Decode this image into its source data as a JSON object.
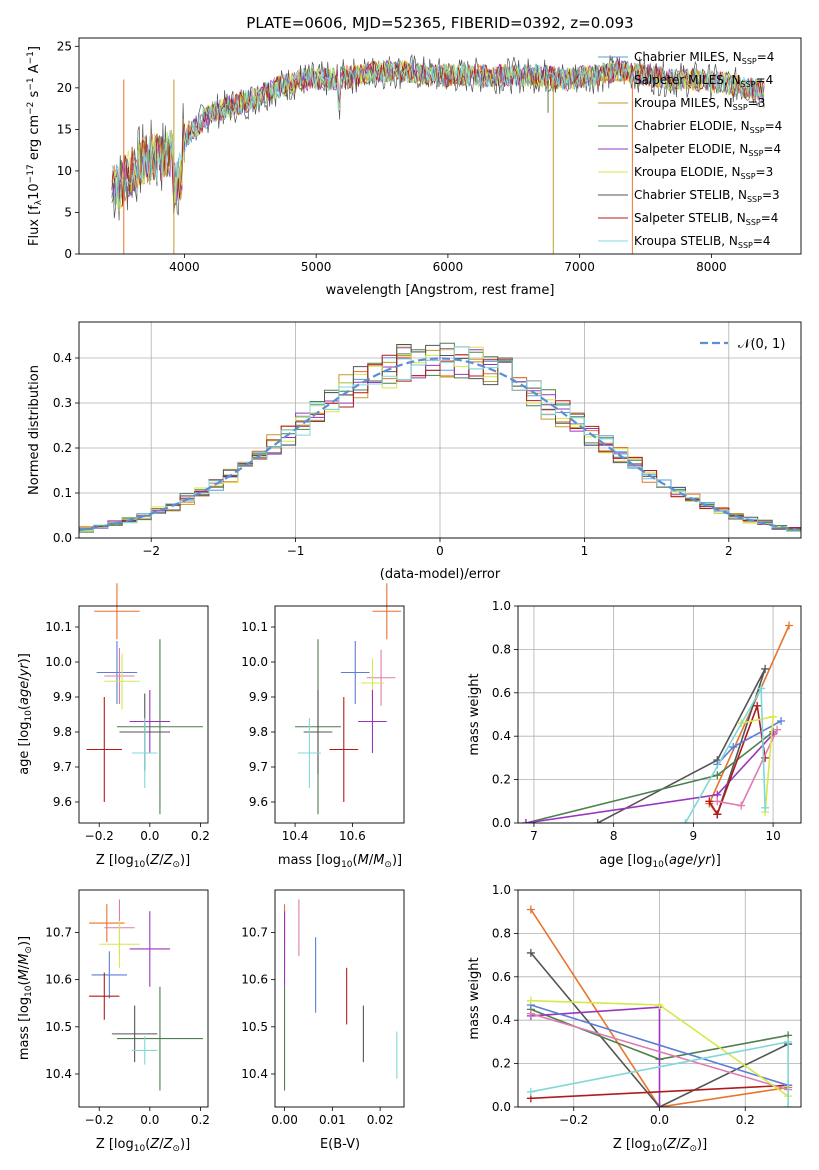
{
  "figure": {
    "title": "PLATE=0606, MJD=52365, FIBERID=0392, z=0.093"
  },
  "colors": {
    "chabrier_miles": "#5b9bd5",
    "salpeter_miles": "#e8732a",
    "kroupa_miles": "#c49a2c",
    "chabrier_elodie": "#4f7f4f",
    "salpeter_elodie": "#9a35c0",
    "kroupa_elodie": "#d6e84a",
    "chabrier_stelib": "#555555",
    "salpeter_stelib": "#b01c1c",
    "kroupa_stelib": "#7fd8d8",
    "gaussian": "#5b8fd5",
    "pink": "#e07bb0",
    "blue": "#5b7fd8"
  },
  "chart_data": [
    {
      "id": "spectrum",
      "type": "line",
      "title": "PLATE=0606, MJD=52365, FIBERID=0392, z=0.093",
      "xlabel": "wavelength [Angstrom, rest frame]",
      "ylabel": "Flux [f_λ 10^-17 erg cm^-2 s^-1 A^-1]",
      "xlim": [
        3200,
        8680
      ],
      "ylim": [
        0,
        26
      ],
      "xticks": [
        4000,
        5000,
        6000,
        7000,
        8000
      ],
      "yticks": [
        0,
        5,
        10,
        15,
        20,
        25
      ],
      "legend": "right",
      "x": [
        3500,
        3600,
        3700,
        3800,
        3900,
        4000,
        4100,
        4200,
        4300,
        4500,
        4700,
        4900,
        5100,
        5300,
        5500,
        5700,
        5900,
        6100,
        6300,
        6500,
        6700,
        6900,
        7100,
        7300,
        7500,
        7700,
        7900,
        8100,
        8300,
        8400
      ],
      "y": [
        8,
        10,
        11.5,
        11.5,
        12,
        14,
        15.5,
        17,
        17.5,
        18.5,
        20,
        21,
        21,
        21.5,
        22,
        22,
        21.5,
        21.5,
        21.5,
        21.5,
        21.5,
        21,
        21.5,
        22,
        21.5,
        21,
        21,
        20.5,
        20,
        19.5
      ],
      "series": [
        {
          "name": "Chabrier MILES, N_SSP=4",
          "label_main": "Chabrier MILES, N",
          "label_sub": "SSP",
          "label_tail": "=4",
          "color_key": "chabrier_miles"
        },
        {
          "name": "Salpeter MILES, N_SSP=4",
          "label_main": "Salpeter MILES, N",
          "label_sub": "SSP",
          "label_tail": "=4",
          "color_key": "salpeter_miles"
        },
        {
          "name": "Kroupa MILES, N_SSP=3",
          "label_main": "Kroupa MILES, N",
          "label_sub": "SSP",
          "label_tail": "=3",
          "color_key": "kroupa_miles"
        },
        {
          "name": "Chabrier ELODIE, N_SSP=4",
          "label_main": "Chabrier ELODIE, N",
          "label_sub": "SSP",
          "label_tail": "=4",
          "color_key": "chabrier_elodie"
        },
        {
          "name": "Salpeter ELODIE, N_SSP=4",
          "label_main": "Salpeter ELODIE, N",
          "label_sub": "SSP",
          "label_tail": "=4",
          "color_key": "salpeter_elodie"
        },
        {
          "name": "Kroupa ELODIE, N_SSP=3",
          "label_main": "Kroupa ELODIE, N",
          "label_sub": "SSP",
          "label_tail": "=3",
          "color_key": "kroupa_elodie"
        },
        {
          "name": "Chabrier STELIB, N_SSP=3",
          "label_main": "Chabrier STELIB, N",
          "label_sub": "SSP",
          "label_tail": "=3",
          "color_key": "chabrier_stelib"
        },
        {
          "name": "Salpeter STELIB, N_SSP=4",
          "label_main": "Salpeter STELIB, N",
          "label_sub": "SSP",
          "label_tail": "=4",
          "color_key": "salpeter_stelib"
        },
        {
          "name": "Kroupa STELIB, N_SSP=4",
          "label_main": "Kroupa STELIB, N",
          "label_sub": "SSP",
          "label_tail": "=4",
          "color_key": "kroupa_stelib"
        }
      ]
    },
    {
      "id": "residuals",
      "type": "line",
      "xlabel": "(data-model)/error",
      "ylabel": "Normed distribution",
      "xlim": [
        -2.5,
        2.5
      ],
      "ylim": [
        0,
        0.48
      ],
      "xticks": [
        -2,
        -1,
        0,
        1,
        2
      ],
      "yticks": [
        0.0,
        0.1,
        0.2,
        0.3,
        0.4
      ],
      "grid": true,
      "legend": "top-right",
      "legend_label": "𝒩(0, 1)",
      "bin_width": 0.1
    },
    {
      "id": "age_vs_Z",
      "type": "scatter",
      "xlabel": "Z [log10(Z/Z⊙)]",
      "ylabel": "age [log10(age/yr)]",
      "xlim": [
        -0.28,
        0.23
      ],
      "ylim": [
        9.54,
        10.16
      ],
      "xticks": [
        -0.2,
        0.0,
        0.2
      ],
      "yticks": [
        9.6,
        9.7,
        9.8,
        9.9,
        10.0,
        10.1
      ],
      "points": [
        {
          "x": -0.13,
          "y": 10.145,
          "xerr": 0.09,
          "yerr": 0.08,
          "color_key": "salpeter_miles"
        },
        {
          "x": -0.13,
          "y": 9.97,
          "xerr": 0.08,
          "yerr": 0.09,
          "color_key": "blue"
        },
        {
          "x": -0.12,
          "y": 9.96,
          "xerr": 0.06,
          "yerr": 0.08,
          "color_key": "pink"
        },
        {
          "x": -0.11,
          "y": 9.945,
          "xerr": 0.07,
          "yerr": 0.08,
          "color_key": "kroupa_elodie"
        },
        {
          "x": -0.18,
          "y": 9.75,
          "xerr": 0.07,
          "yerr": 0.15,
          "color_key": "salpeter_stelib"
        },
        {
          "x": 0.04,
          "y": 9.815,
          "xerr": 0.17,
          "yerr": 0.25,
          "color_key": "chabrier_elodie"
        },
        {
          "x": 0.0,
          "y": 9.83,
          "xerr": 0.08,
          "yerr": 0.09,
          "color_key": "salpeter_elodie"
        },
        {
          "x": -0.02,
          "y": 9.8,
          "xerr": 0.1,
          "yerr": 0.11,
          "color_key": "chabrier_stelib"
        },
        {
          "x": -0.02,
          "y": 9.74,
          "xerr": 0.05,
          "yerr": 0.1,
          "color_key": "kroupa_stelib"
        }
      ]
    },
    {
      "id": "age_vs_mass",
      "type": "scatter",
      "xlabel": "mass [log10(M/M⊙)]",
      "xlim": [
        10.33,
        10.78
      ],
      "ylim": [
        9.54,
        10.16
      ],
      "xticks": [
        10.4,
        10.6
      ],
      "yticks": [
        9.6,
        9.7,
        9.8,
        9.9,
        10.0,
        10.1
      ],
      "points": [
        {
          "x": 10.72,
          "y": 10.145,
          "xerr": 0.05,
          "yerr": 0.08,
          "color_key": "salpeter_miles"
        },
        {
          "x": 10.61,
          "y": 9.97,
          "xerr": 0.05,
          "yerr": 0.09,
          "color_key": "blue"
        },
        {
          "x": 10.7,
          "y": 9.955,
          "xerr": 0.05,
          "yerr": 0.08,
          "color_key": "pink"
        },
        {
          "x": 10.67,
          "y": 9.94,
          "xerr": 0.04,
          "yerr": 0.07,
          "color_key": "kroupa_elodie"
        },
        {
          "x": 10.57,
          "y": 9.75,
          "xerr": 0.05,
          "yerr": 0.15,
          "color_key": "salpeter_stelib"
        },
        {
          "x": 10.48,
          "y": 9.815,
          "xerr": 0.08,
          "yerr": 0.25,
          "color_key": "chabrier_elodie"
        },
        {
          "x": 10.67,
          "y": 9.83,
          "xerr": 0.05,
          "yerr": 0.09,
          "color_key": "salpeter_elodie"
        },
        {
          "x": 10.48,
          "y": 9.8,
          "xerr": 0.05,
          "yerr": 0.12,
          "color_key": "chabrier_stelib"
        },
        {
          "x": 10.45,
          "y": 9.74,
          "xerr": 0.04,
          "yerr": 0.1,
          "color_key": "kroupa_stelib"
        }
      ]
    },
    {
      "id": "weight_vs_age",
      "type": "line",
      "xlabel": "age [log10(age/yr)]",
      "ylabel": "mass weight",
      "xlim": [
        6.8,
        10.35
      ],
      "ylim": [
        0,
        1.0
      ],
      "xticks": [
        7,
        8,
        9,
        10
      ],
      "yticks": [
        0.0,
        0.2,
        0.4,
        0.6,
        0.8,
        1.0
      ],
      "grid": true,
      "series": [
        {
          "color_key": "salpeter_miles",
          "x": [
            9.3,
            9.2,
            10.2
          ],
          "y": [
            0.04,
            0.09,
            0.91
          ]
        },
        {
          "color_key": "chabrier_stelib",
          "x": [
            7.8,
            9.3,
            9.9,
            9.3
          ],
          "y": [
            0.0,
            0.29,
            0.71,
            0.04
          ]
        },
        {
          "color_key": "chabrier_elodie",
          "x": [
            6.9,
            9.3,
            10.0
          ],
          "y": [
            0.0,
            0.22,
            0.42
          ]
        },
        {
          "color_key": "salpeter_elodie",
          "x": [
            6.9,
            9.3,
            10.0
          ],
          "y": [
            0.0,
            0.13,
            0.41
          ]
        },
        {
          "color_key": "salpeter_stelib",
          "x": [
            9.2,
            9.3,
            9.8,
            9.9
          ],
          "y": [
            0.1,
            0.04,
            0.54,
            0.3
          ]
        },
        {
          "color_key": "blue",
          "x": [
            9.3,
            9.5,
            10.1
          ],
          "y": [
            0.27,
            0.35,
            0.47
          ]
        },
        {
          "color_key": "pink",
          "x": [
            9.3,
            9.6,
            10.05
          ],
          "y": [
            0.1,
            0.08,
            0.43
          ]
        },
        {
          "color_key": "kroupa_elodie",
          "x": [
            9.6,
            10.0,
            9.9
          ],
          "y": [
            0.46,
            0.49,
            0.05
          ]
        },
        {
          "color_key": "kroupa_stelib",
          "x": [
            8.9,
            9.85,
            9.9
          ],
          "y": [
            0.0,
            0.62,
            0.07
          ]
        }
      ]
    },
    {
      "id": "mass_vs_Z",
      "type": "scatter",
      "xlabel": "Z [log10(Z/Z⊙)]",
      "ylabel": "mass [log10(M/M⊙)]",
      "xlim": [
        -0.28,
        0.23
      ],
      "ylim": [
        10.33,
        10.79
      ],
      "xticks": [
        -0.2,
        0.0,
        0.2
      ],
      "yticks": [
        10.4,
        10.5,
        10.6,
        10.7
      ],
      "points": [
        {
          "x": -0.17,
          "y": 10.72,
          "xerr": 0.07,
          "yerr": 0.04,
          "color_key": "salpeter_miles"
        },
        {
          "x": -0.16,
          "y": 10.61,
          "xerr": 0.07,
          "yerr": 0.05,
          "color_key": "blue"
        },
        {
          "x": -0.12,
          "y": 10.71,
          "xerr": 0.06,
          "yerr": 0.06,
          "color_key": "pink"
        },
        {
          "x": -0.12,
          "y": 10.675,
          "xerr": 0.08,
          "yerr": 0.05,
          "color_key": "kroupa_elodie"
        },
        {
          "x": -0.18,
          "y": 10.565,
          "xerr": 0.06,
          "yerr": 0.05,
          "color_key": "salpeter_stelib"
        },
        {
          "x": 0.04,
          "y": 10.475,
          "xerr": 0.17,
          "yerr": 0.11,
          "color_key": "chabrier_elodie"
        },
        {
          "x": 0.0,
          "y": 10.665,
          "xerr": 0.08,
          "yerr": 0.08,
          "color_key": "salpeter_elodie"
        },
        {
          "x": -0.06,
          "y": 10.485,
          "xerr": 0.09,
          "yerr": 0.06,
          "color_key": "chabrier_stelib"
        },
        {
          "x": -0.02,
          "y": 10.45,
          "xerr": 0.05,
          "yerr": 0.03,
          "color_key": "kroupa_stelib"
        }
      ]
    },
    {
      "id": "mass_vs_EBV",
      "type": "scatter",
      "xlabel": "E(B-V)",
      "xlim": [
        -0.002,
        0.025
      ],
      "ylim": [
        10.33,
        10.79
      ],
      "xticks": [
        0.0,
        0.01,
        0.02
      ],
      "yticks": [
        10.4,
        10.5,
        10.6,
        10.7
      ],
      "points": [
        {
          "x": 0.0,
          "y": 10.72,
          "yerr": 0.04,
          "color_key": "salpeter_miles"
        },
        {
          "x": 0.0065,
          "y": 10.61,
          "yerr": 0.08,
          "color_key": "blue"
        },
        {
          "x": 0.003,
          "y": 10.71,
          "yerr": 0.06,
          "color_key": "pink"
        },
        {
          "x": 0.0,
          "y": 10.675,
          "yerr": 0.05,
          "color_key": "kroupa_elodie"
        },
        {
          "x": 0.013,
          "y": 10.565,
          "yerr": 0.06,
          "color_key": "salpeter_stelib"
        },
        {
          "x": 0.0,
          "y": 10.475,
          "yerr": 0.11,
          "color_key": "chabrier_elodie"
        },
        {
          "x": 0.0,
          "y": 10.665,
          "yerr": 0.08,
          "color_key": "salpeter_elodie"
        },
        {
          "x": 0.0165,
          "y": 10.485,
          "yerr": 0.06,
          "color_key": "chabrier_stelib"
        },
        {
          "x": 0.0235,
          "y": 10.44,
          "yerr": 0.05,
          "color_key": "kroupa_stelib"
        }
      ]
    },
    {
      "id": "weight_vs_Z",
      "type": "line",
      "xlabel": "Z [log10(Z/Z⊙)]",
      "ylabel": "mass weight",
      "xlim": [
        -0.33,
        0.33
      ],
      "ylim": [
        0,
        1.0
      ],
      "xticks": [
        -0.2,
        0.0,
        0.2
      ],
      "yticks": [
        0.0,
        0.2,
        0.4,
        0.6,
        0.8,
        1.0
      ],
      "grid": true,
      "series": [
        {
          "color_key": "salpeter_miles",
          "x": [
            -0.3,
            0.0,
            0.3
          ],
          "y": [
            0.91,
            0.0,
            0.09
          ]
        },
        {
          "color_key": "chabrier_stelib",
          "x": [
            -0.3,
            0.0,
            0.3
          ],
          "y": [
            0.71,
            0.0,
            0.29
          ]
        },
        {
          "color_key": "chabrier_elodie",
          "x": [
            -0.3,
            0.0,
            0.3
          ],
          "y": [
            0.45,
            0.22,
            0.33
          ]
        },
        {
          "color_key": "salpeter_elodie",
          "x": [
            -0.3,
            0.0,
            0.0
          ],
          "y": [
            0.42,
            0.46,
            0.0
          ]
        },
        {
          "color_key": "salpeter_stelib",
          "x": [
            -0.3,
            0.3
          ],
          "y": [
            0.04,
            0.1
          ]
        },
        {
          "color_key": "blue",
          "x": [
            -0.3,
            0.3
          ],
          "y": [
            0.47,
            0.1
          ]
        },
        {
          "color_key": "pink",
          "x": [
            -0.3,
            0.3
          ],
          "y": [
            0.43,
            0.08
          ]
        },
        {
          "color_key": "kroupa_elodie",
          "x": [
            -0.3,
            0.0,
            0.3
          ],
          "y": [
            0.49,
            0.47,
            0.05
          ]
        },
        {
          "color_key": "kroupa_stelib",
          "x": [
            -0.3,
            0.3,
            0.3
          ],
          "y": [
            0.07,
            0.3,
            0.0
          ]
        }
      ]
    }
  ]
}
